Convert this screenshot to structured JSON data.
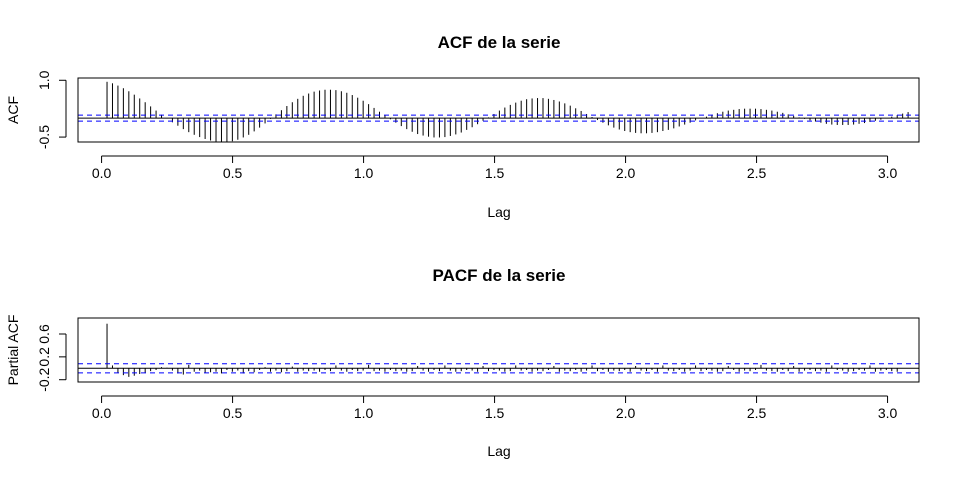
{
  "chart_data": [
    {
      "type": "bar",
      "subtype": "acf-spikes",
      "title": "ACF de la serie",
      "xlabel": "Lag",
      "ylabel": "ACF",
      "xlim": [
        -0.09,
        3.12
      ],
      "ylim": [
        -0.63,
        1.06
      ],
      "x_ticks": [
        "0.0",
        "0.5",
        "1.0",
        "1.5",
        "2.0",
        "2.5",
        "3.0"
      ],
      "y_ticks": [
        "-0.5",
        "1.0"
      ],
      "x_tick_values": [
        0,
        0.5,
        1,
        1.5,
        2,
        2.5,
        3
      ],
      "y_tick_values": [
        -0.5,
        1.0
      ],
      "confidence_band": [
        -0.08,
        0.08
      ],
      "zero_line": 0,
      "lag_step": 0.0208,
      "values": [
        0.96,
        0.92,
        0.86,
        0.79,
        0.71,
        0.62,
        0.52,
        0.42,
        0.31,
        0.2,
        0.09,
        -0.01,
        -0.11,
        -0.2,
        -0.29,
        -0.37,
        -0.44,
        -0.5,
        -0.55,
        -0.59,
        -0.62,
        -0.63,
        -0.63,
        -0.61,
        -0.57,
        -0.51,
        -0.44,
        -0.35,
        -0.25,
        -0.14,
        -0.02,
        0.1,
        0.21,
        0.32,
        0.42,
        0.51,
        0.59,
        0.65,
        0.7,
        0.73,
        0.75,
        0.75,
        0.74,
        0.71,
        0.67,
        0.61,
        0.54,
        0.46,
        0.37,
        0.27,
        0.17,
        0.07,
        -0.03,
        -0.12,
        -0.21,
        -0.29,
        -0.36,
        -0.42,
        -0.46,
        -0.49,
        -0.51,
        -0.51,
        -0.5,
        -0.47,
        -0.43,
        -0.38,
        -0.31,
        -0.24,
        -0.16,
        -0.07,
        0.02,
        0.11,
        0.2,
        0.28,
        0.35,
        0.41,
        0.46,
        0.5,
        0.52,
        0.53,
        0.53,
        0.51,
        0.48,
        0.44,
        0.39,
        0.33,
        0.26,
        0.19,
        0.11,
        0.03,
        -0.05,
        -0.12,
        -0.19,
        -0.25,
        -0.3,
        -0.34,
        -0.37,
        -0.39,
        -0.4,
        -0.4,
        -0.39,
        -0.37,
        -0.34,
        -0.31,
        -0.27,
        -0.22,
        -0.17,
        -0.12,
        -0.06,
        -0.01,
        0.04,
        0.09,
        0.13,
        0.17,
        0.2,
        0.22,
        0.24,
        0.25,
        0.25,
        0.25,
        0.24,
        0.22,
        0.2,
        0.17,
        0.14,
        0.1,
        0.06,
        0.02,
        -0.02,
        -0.06,
        -0.09,
        -0.12,
        -0.15,
        -0.17,
        -0.18,
        -0.18,
        -0.18,
        -0.17,
        -0.15,
        -0.13,
        -0.1,
        -0.07,
        -0.04,
        0.0,
        0.04,
        0.08,
        0.12,
        0.16
      ]
    },
    {
      "type": "bar",
      "subtype": "pacf-spikes",
      "title": "PACF de la serie",
      "xlabel": "Lag",
      "ylabel": "Partial ACF",
      "xlim": [
        -0.09,
        3.12
      ],
      "ylim": [
        -0.24,
        0.88
      ],
      "x_ticks": [
        "0.0",
        "0.5",
        "1.0",
        "1.5",
        "2.0",
        "2.5",
        "3.0"
      ],
      "y_ticks": [
        "-0.2",
        "0.2",
        "0.6"
      ],
      "x_tick_values": [
        0,
        0.5,
        1,
        1.5,
        2,
        2.5,
        3
      ],
      "y_tick_values": [
        -0.2,
        0.2,
        0.6
      ],
      "confidence_band": [
        -0.08,
        0.08
      ],
      "zero_line": 0,
      "lag_step": 0.0208,
      "values": [
        0.78,
        0.05,
        -0.08,
        -0.12,
        -0.15,
        -0.13,
        -0.1,
        -0.08,
        -0.05,
        -0.03,
        0.02,
        0.01,
        -0.04,
        -0.09,
        -0.11,
        0.06,
        -0.06,
        -0.04,
        -0.08,
        -0.07,
        -0.06,
        -0.09,
        -0.03,
        -0.06,
        -0.04,
        -0.09,
        -0.05,
        -0.07,
        -0.03,
        0.02,
        -0.06,
        -0.04,
        -0.07,
        -0.05,
        0.03,
        -0.06,
        -0.04,
        -0.05,
        -0.04,
        -0.06,
        -0.03,
        -0.05,
        0.05,
        -0.04,
        -0.06,
        -0.03,
        -0.05,
        -0.04,
        0.06,
        -0.05,
        -0.04,
        -0.06,
        -0.03,
        -0.05,
        -0.04,
        -0.06,
        -0.05,
        0.04,
        -0.04,
        -0.06,
        -0.03,
        -0.05,
        0.05,
        -0.04,
        -0.06,
        -0.05,
        -0.03,
        -0.04,
        -0.06,
        0.04,
        -0.05,
        -0.03,
        -0.04,
        -0.06,
        -0.05,
        0.05,
        -0.04,
        -0.03,
        -0.06,
        -0.04,
        -0.05,
        -0.03,
        0.04,
        -0.06,
        -0.04,
        -0.05,
        -0.03,
        -0.06,
        -0.04,
        0.05,
        -0.05,
        -0.03,
        -0.06,
        -0.04,
        -0.05,
        -0.03,
        -0.06,
        0.04,
        -0.04,
        -0.05,
        -0.03,
        -0.06,
        0.05,
        -0.04,
        -0.05,
        -0.03,
        -0.06,
        -0.04,
        0.05,
        -0.05,
        -0.03,
        -0.04,
        -0.06,
        -0.05,
        0.04,
        -0.03,
        -0.06,
        -0.04,
        -0.05,
        -0.03,
        0.06,
        -0.04,
        -0.05,
        -0.06,
        -0.03,
        -0.05,
        0.04,
        -0.06,
        -0.04,
        -0.03,
        -0.05,
        -0.04,
        -0.06,
        0.05,
        -0.03,
        -0.04,
        -0.06,
        -0.05,
        -0.03,
        -0.04,
        0.05,
        -0.06,
        -0.04,
        -0.03,
        -0.05,
        -0.06
      ]
    }
  ],
  "colors": {
    "spike": "#000000",
    "confidence": "#0000ff",
    "axis": "#000000",
    "background": "#ffffff"
  }
}
